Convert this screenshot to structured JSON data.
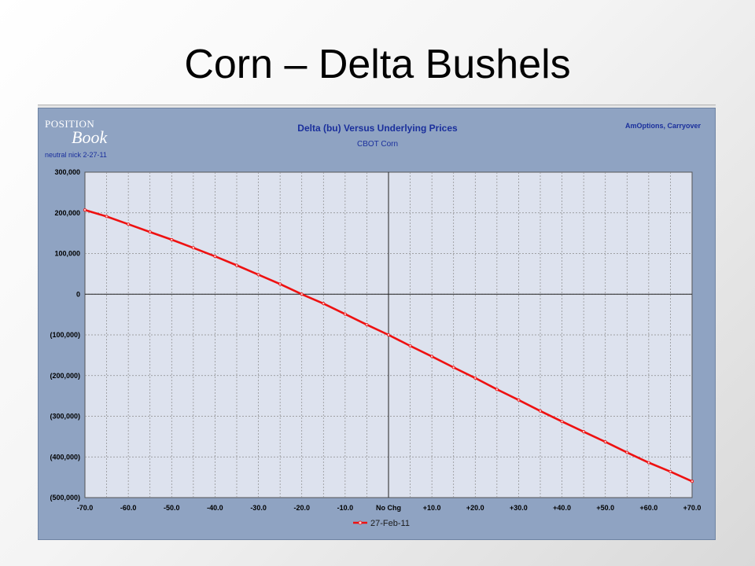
{
  "slide": {
    "title": "Corn – Delta Bushels"
  },
  "panel": {
    "logo_top": "POSITION",
    "logo_bottom": "Book",
    "logo_sub": "neutral nick 2-27-11",
    "corner_note": "AmOptions, Carryover"
  },
  "chart_data": {
    "type": "line",
    "title": "Delta (bu) Versus Underlying Prices",
    "subtitle": "CBOT Corn",
    "xlabel": "",
    "ylabel": "",
    "x_tick_labels": [
      "-70.0",
      "-60.0",
      "-50.0",
      "-40.0",
      "-30.0",
      "-20.0",
      "-10.0",
      "No Chg",
      "+10.0",
      "+20.0",
      "+30.0",
      "+40.0",
      "+50.0",
      "+60.0",
      "+70.0"
    ],
    "y_tick_labels": [
      "300,000",
      "200,000",
      "100,000",
      "0",
      "(100,000)",
      "(200,000)",
      "(300,000)",
      "(400,000)",
      "(500,000)"
    ],
    "xlim": [
      -70,
      70
    ],
    "ylim": [
      -500000,
      300000
    ],
    "grid": true,
    "legend_position": "bottom-center",
    "colors": {
      "series": "#ee1111",
      "plot_bg": "#dde2ee",
      "panel_bg": "#8fa3c2"
    },
    "series": [
      {
        "name": "27-Feb-11",
        "x": [
          -70,
          -65,
          -60,
          -55,
          -50,
          -45,
          -40,
          -35,
          -30,
          -25,
          -20,
          -15,
          -10,
          -5,
          0,
          5,
          10,
          15,
          20,
          25,
          30,
          35,
          40,
          45,
          50,
          55,
          60,
          65,
          70
        ],
        "values": [
          207000,
          191000,
          172000,
          153000,
          134000,
          114000,
          93000,
          71000,
          48000,
          25000,
          0,
          -23000,
          -49000,
          -75000,
          -100000,
          -127000,
          -153000,
          -180000,
          -206000,
          -234000,
          -260000,
          -287000,
          -313000,
          -338000,
          -363000,
          -389000,
          -414000,
          -436000,
          -460000
        ]
      }
    ]
  }
}
